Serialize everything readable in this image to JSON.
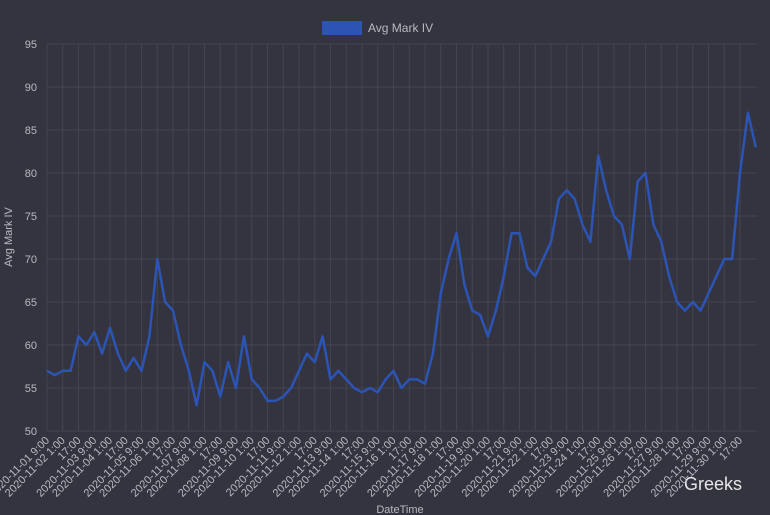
{
  "chart_data": {
    "type": "line",
    "y_label": "Avg Mark IV",
    "x_label": "DateTime",
    "watermark": "Greeks",
    "categories": [
      "2020-11-01 9:00",
      null,
      "2020-11-02 1:00",
      null,
      "17:00",
      null,
      "2020-11-03 9:00",
      null,
      "2020-11-04 1:00",
      null,
      "17:00",
      null,
      "2020-11-05 9:00",
      null,
      "2020-11-06 1:00",
      null,
      "17:00",
      null,
      "2020-11-07 9:00",
      null,
      "2020-11-08 1:00",
      null,
      "17:00",
      null,
      "2020-11-09 9:00",
      null,
      "2020-11-10 1:00",
      null,
      "17:00",
      null,
      "2020-11-11 9:00",
      null,
      "2020-11-12 1:00",
      null,
      "17:00",
      null,
      "2020-11-13 9:00",
      null,
      "2020-11-14 1:00",
      null,
      "17:00",
      null,
      "2020-11-15 9:00",
      null,
      "2020-11-16 1:00",
      null,
      "17:00",
      null,
      "2020-11-17 9:00",
      null,
      "2020-11-18 1:00",
      null,
      "17:00",
      null,
      "2020-11-19 9:00",
      null,
      "2020-11-20 1:00",
      null,
      "17:00",
      null,
      "2020-11-21 9:00",
      null,
      "2020-11-22 1:00",
      null,
      "17:00",
      null,
      "2020-11-23 9:00",
      null,
      "2020-11-24 1:00",
      null,
      "17:00",
      null,
      "2020-11-25 9:00",
      null,
      "2020-11-26 1:00",
      null,
      "17:00",
      null,
      "2020-11-27 9:00",
      null,
      "2020-11-28 1:00",
      null,
      "17:00",
      null,
      "2020-11-29 9:00",
      null,
      "2020-11-30 1:00",
      null,
      "17:00",
      null,
      null
    ],
    "series": [
      {
        "name": "Avg Mark IV",
        "color": "#2b54b4",
        "values": [
          57,
          56.5,
          57,
          57,
          61,
          60,
          61.5,
          59,
          62,
          59,
          57,
          58.5,
          57,
          61,
          70,
          65,
          64,
          60,
          57,
          53,
          58,
          57,
          54,
          58,
          55,
          61,
          56,
          55,
          53.5,
          53.5,
          54,
          55,
          57,
          59,
          58,
          61,
          56,
          57,
          56,
          55,
          54.5,
          55,
          54.5,
          56,
          57,
          55,
          56,
          56,
          55.5,
          59,
          66,
          70,
          73,
          67,
          64,
          63.5,
          61,
          64,
          68,
          73,
          73,
          69,
          68,
          70,
          72,
          77,
          78,
          77,
          74,
          72,
          82,
          78,
          75,
          74,
          70,
          79,
          80,
          74,
          72,
          68,
          65,
          64,
          65,
          64,
          66,
          68,
          70,
          70,
          80,
          87,
          83
        ]
      }
    ],
    "ylim": [
      50,
      95
    ],
    "yticks": [
      50,
      55,
      60,
      65,
      70,
      75,
      80,
      85,
      90,
      95
    ],
    "grid": true,
    "legend": "top"
  }
}
